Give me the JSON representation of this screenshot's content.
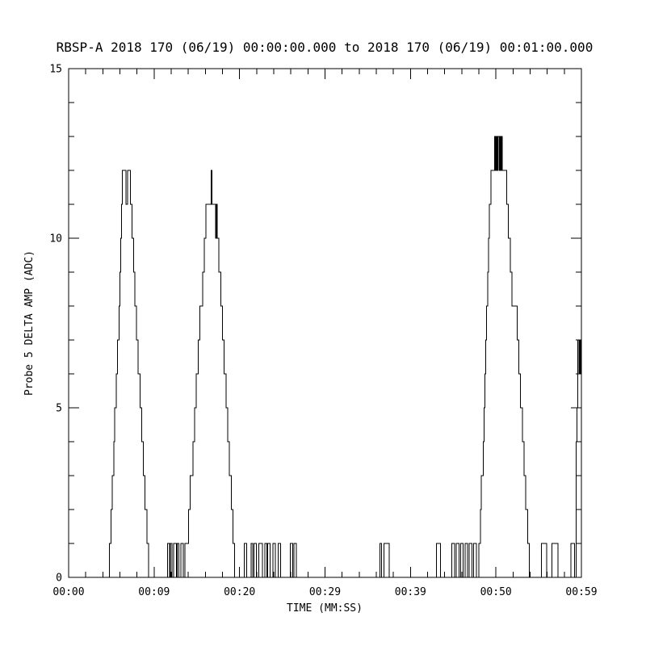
{
  "chart_data": {
    "type": "line",
    "style": "step-after",
    "title": "RBSP-A 2018 170 (06/19) 00:00:00.000 to 2018 170 (06/19) 00:01:00.000",
    "xlabel": "TIME (MM:SS)",
    "ylabel": "Probe 5 DELTA AMP (ADC)",
    "xlim": [
      0,
      59
    ],
    "ylim": [
      0,
      15
    ],
    "grid": false,
    "legend": "none",
    "colors": {
      "line": "#000000",
      "background": "#ffffff",
      "axis": "#000000"
    },
    "xticks": [
      {
        "t": 0,
        "label": "00:00"
      },
      {
        "t": 9.833,
        "label": "00:09"
      },
      {
        "t": 19.667,
        "label": "00:20"
      },
      {
        "t": 29.5,
        "label": "00:29"
      },
      {
        "t": 39.333,
        "label": "00:39"
      },
      {
        "t": 49.167,
        "label": "00:50"
      },
      {
        "t": 59,
        "label": "00:59"
      }
    ],
    "yticks": [
      {
        "v": 0,
        "label": "0"
      },
      {
        "v": 5,
        "label": "5"
      },
      {
        "v": 10,
        "label": "10"
      },
      {
        "v": 15,
        "label": "15"
      }
    ],
    "y_minor_step": 1,
    "x_minor_divisions": 5,
    "points": [
      [
        0,
        0
      ],
      [
        4.5,
        0
      ],
      [
        4.7,
        1
      ],
      [
        4.9,
        2
      ],
      [
        5.0,
        3
      ],
      [
        5.2,
        4
      ],
      [
        5.3,
        5
      ],
      [
        5.5,
        6
      ],
      [
        5.6,
        7
      ],
      [
        5.8,
        8
      ],
      [
        5.9,
        9
      ],
      [
        6.0,
        10
      ],
      [
        6.1,
        11
      ],
      [
        6.2,
        12
      ],
      [
        6.5,
        12
      ],
      [
        6.6,
        11
      ],
      [
        6.8,
        12
      ],
      [
        7.0,
        12
      ],
      [
        7.1,
        11
      ],
      [
        7.3,
        10
      ],
      [
        7.5,
        9
      ],
      [
        7.6,
        8
      ],
      [
        7.8,
        7
      ],
      [
        8.0,
        6
      ],
      [
        8.2,
        5
      ],
      [
        8.4,
        4
      ],
      [
        8.6,
        3
      ],
      [
        8.8,
        2
      ],
      [
        9.0,
        1
      ],
      [
        9.2,
        0
      ],
      [
        11.3,
        0
      ],
      [
        11.4,
        1
      ],
      [
        11.6,
        0
      ],
      [
        11.7,
        1
      ],
      [
        11.9,
        0
      ],
      [
        12.1,
        1
      ],
      [
        12.4,
        0
      ],
      [
        12.5,
        1
      ],
      [
        12.7,
        0
      ],
      [
        12.9,
        1
      ],
      [
        13.2,
        0
      ],
      [
        13.4,
        1
      ],
      [
        13.6,
        1
      ],
      [
        13.8,
        2
      ],
      [
        14.0,
        3
      ],
      [
        14.3,
        4
      ],
      [
        14.5,
        5
      ],
      [
        14.7,
        6
      ],
      [
        14.9,
        7
      ],
      [
        15.1,
        8
      ],
      [
        15.4,
        9
      ],
      [
        15.6,
        10
      ],
      [
        15.8,
        11
      ],
      [
        16.3,
        11
      ],
      [
        16.4,
        12
      ],
      [
        16.5,
        11
      ],
      [
        16.8,
        11
      ],
      [
        16.9,
        10
      ],
      [
        17.0,
        11
      ],
      [
        17.1,
        10
      ],
      [
        17.3,
        9
      ],
      [
        17.5,
        8
      ],
      [
        17.7,
        7
      ],
      [
        17.9,
        6
      ],
      [
        18.1,
        5
      ],
      [
        18.3,
        4
      ],
      [
        18.5,
        3
      ],
      [
        18.7,
        2
      ],
      [
        18.9,
        1
      ],
      [
        19.1,
        0
      ],
      [
        20.1,
        0
      ],
      [
        20.2,
        1
      ],
      [
        20.5,
        0
      ],
      [
        21.0,
        1
      ],
      [
        21.2,
        0
      ],
      [
        21.3,
        1
      ],
      [
        21.6,
        0
      ],
      [
        21.9,
        1
      ],
      [
        22.3,
        0
      ],
      [
        22.6,
        1
      ],
      [
        22.8,
        0
      ],
      [
        22.9,
        1
      ],
      [
        23.2,
        0
      ],
      [
        23.5,
        1
      ],
      [
        23.8,
        0
      ],
      [
        24.1,
        1
      ],
      [
        24.4,
        0
      ],
      [
        25.5,
        1
      ],
      [
        25.8,
        0
      ],
      [
        25.9,
        1
      ],
      [
        26.2,
        0
      ],
      [
        35.7,
        0
      ],
      [
        35.8,
        1
      ],
      [
        36.0,
        0
      ],
      [
        36.3,
        1
      ],
      [
        36.9,
        0
      ],
      [
        42.2,
        0
      ],
      [
        42.3,
        1
      ],
      [
        42.8,
        0
      ],
      [
        44.0,
        0
      ],
      [
        44.1,
        1
      ],
      [
        44.4,
        0
      ],
      [
        44.6,
        1
      ],
      [
        44.9,
        0
      ],
      [
        45.1,
        1
      ],
      [
        45.4,
        0
      ],
      [
        45.6,
        1
      ],
      [
        45.9,
        0
      ],
      [
        46.1,
        1
      ],
      [
        46.4,
        0
      ],
      [
        46.6,
        1
      ],
      [
        46.9,
        0
      ],
      [
        47.2,
        1
      ],
      [
        47.4,
        2
      ],
      [
        47.5,
        3
      ],
      [
        47.7,
        4
      ],
      [
        47.8,
        5
      ],
      [
        47.9,
        6
      ],
      [
        48.0,
        7
      ],
      [
        48.1,
        8
      ],
      [
        48.2,
        9
      ],
      [
        48.3,
        10
      ],
      [
        48.4,
        11
      ],
      [
        48.6,
        12
      ],
      [
        48.9,
        12
      ],
      [
        49.0,
        13
      ],
      [
        49.1,
        12
      ],
      [
        49.2,
        13
      ],
      [
        49.3,
        12
      ],
      [
        49.4,
        13
      ],
      [
        49.5,
        12
      ],
      [
        49.6,
        13
      ],
      [
        49.7,
        12
      ],
      [
        49.8,
        13
      ],
      [
        49.9,
        12
      ],
      [
        50.2,
        12
      ],
      [
        50.4,
        11
      ],
      [
        50.6,
        10
      ],
      [
        50.8,
        9
      ],
      [
        51.0,
        8
      ],
      [
        51.4,
        8
      ],
      [
        51.6,
        7
      ],
      [
        51.8,
        6
      ],
      [
        52.0,
        5
      ],
      [
        52.2,
        4
      ],
      [
        52.4,
        3
      ],
      [
        52.6,
        2
      ],
      [
        52.8,
        1
      ],
      [
        53.0,
        0
      ],
      [
        54.3,
        0
      ],
      [
        54.4,
        1
      ],
      [
        55.0,
        0
      ],
      [
        55.6,
        1
      ],
      [
        56.3,
        0
      ],
      [
        57.6,
        0
      ],
      [
        57.8,
        1
      ],
      [
        58.1,
        1
      ],
      [
        58.2,
        0
      ],
      [
        58.4,
        4
      ],
      [
        58.5,
        5
      ],
      [
        58.6,
        7
      ],
      [
        58.7,
        6
      ],
      [
        58.8,
        7
      ],
      [
        58.9,
        6
      ],
      [
        59.0,
        7
      ]
    ]
  }
}
